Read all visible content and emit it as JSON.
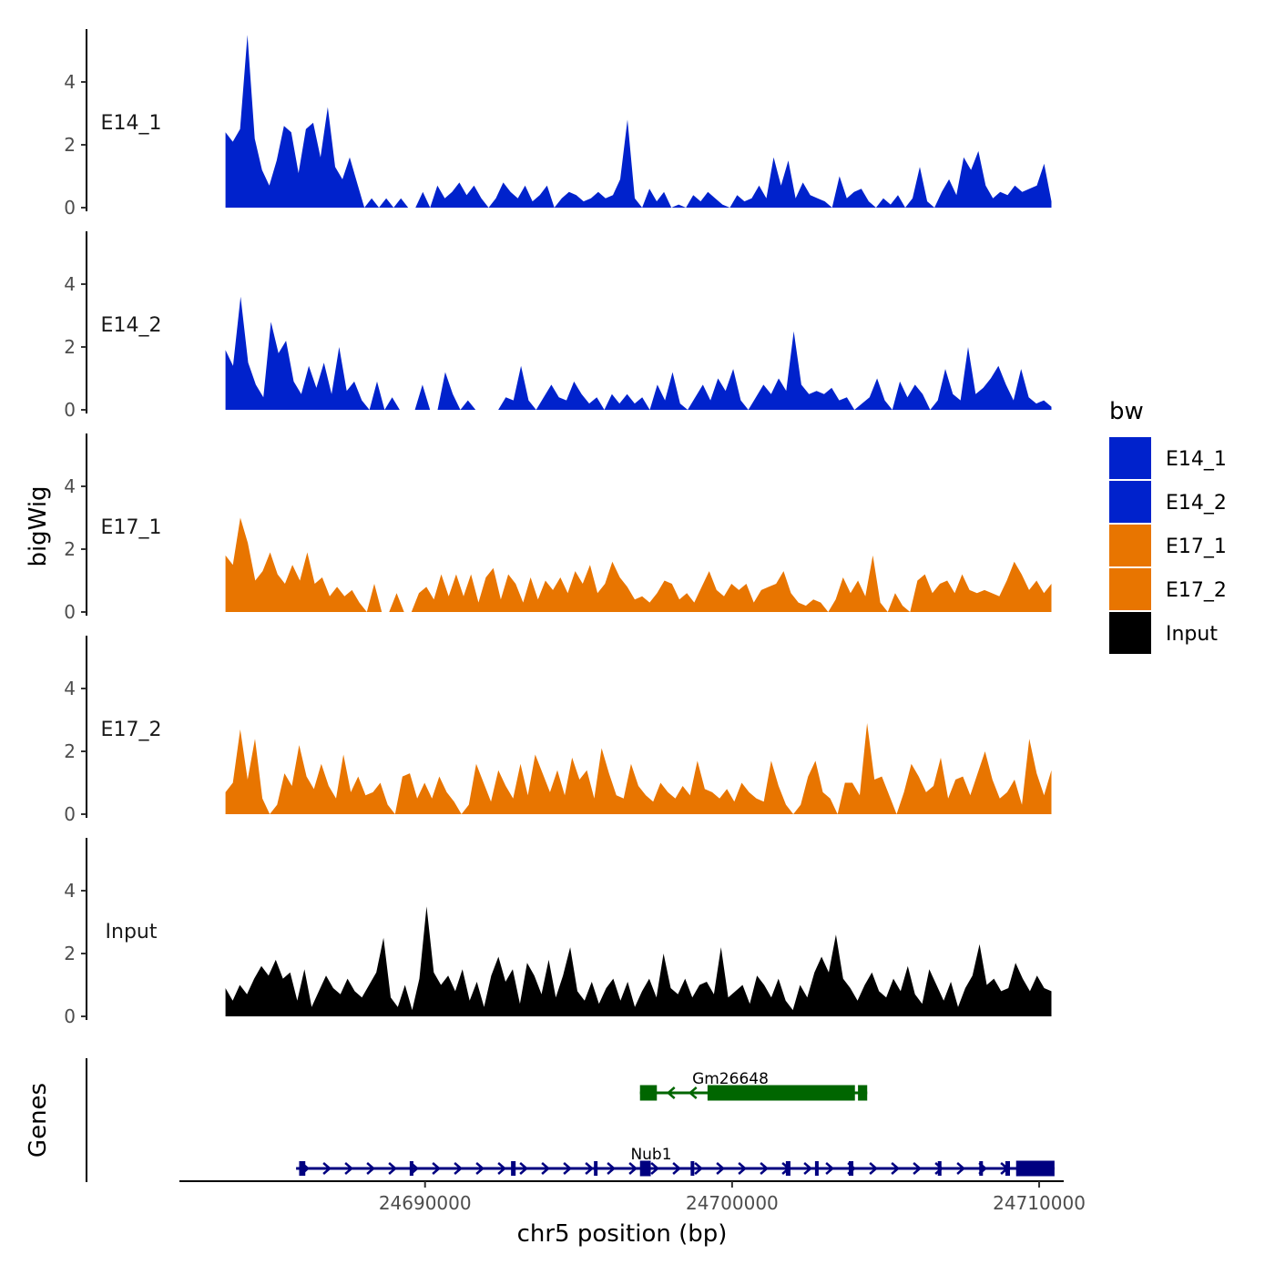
{
  "chart_data": {
    "type": "area",
    "y_axis_title": "bigWig",
    "genes_axis_title": "Genes",
    "x_axis_title": "chr5 position (bp)",
    "x_range": [
      24682000,
      24710800
    ],
    "x_ticks": [
      24690000,
      24700000,
      24710000
    ],
    "x_tick_labels": [
      "24690000",
      "24700000",
      "24710000"
    ],
    "y_range": [
      0,
      5.8
    ],
    "y_ticks": [
      0,
      2,
      4
    ],
    "y_tick_labels": [
      "0",
      "2",
      "4"
    ],
    "legend": {
      "title": "bw",
      "position": "right",
      "items": [
        {
          "label": "E14_1",
          "color": "#0022cc"
        },
        {
          "label": "E14_2",
          "color": "#0022cc"
        },
        {
          "label": "E17_1",
          "color": "#e87500"
        },
        {
          "label": "E17_2",
          "color": "#e87500"
        },
        {
          "label": "Input",
          "color": "#000000"
        }
      ]
    },
    "tracks": [
      {
        "name": "E14_1",
        "color": "#0022cc",
        "x_start": 24683500,
        "x_end": 24710400,
        "values": [
          2.4,
          2.1,
          2.5,
          5.5,
          2.2,
          1.2,
          0.7,
          1.5,
          2.6,
          2.4,
          1.1,
          2.5,
          2.7,
          1.6,
          3.2,
          1.3,
          0.9,
          1.6,
          0.8,
          0,
          0.3,
          0,
          0.3,
          0,
          0.3,
          0,
          0,
          0.5,
          0,
          0.7,
          0.3,
          0.5,
          0.8,
          0.4,
          0.7,
          0.3,
          0,
          0.3,
          0.8,
          0.5,
          0.3,
          0.7,
          0.2,
          0.4,
          0.7,
          0,
          0.3,
          0.5,
          0.4,
          0.2,
          0.3,
          0.5,
          0.3,
          0.4,
          0.9,
          2.8,
          0.3,
          0,
          0.6,
          0.2,
          0.5,
          0,
          0.1,
          0,
          0.4,
          0.2,
          0.5,
          0.3,
          0.1,
          0,
          0.4,
          0.2,
          0.3,
          0.7,
          0.3,
          1.6,
          0.7,
          1.5,
          0.3,
          0.8,
          0.4,
          0.3,
          0.2,
          0,
          1.0,
          0.3,
          0.5,
          0.6,
          0.2,
          0,
          0.3,
          0.1,
          0.4,
          0,
          0.3,
          1.3,
          0.2,
          0,
          0.5,
          0.9,
          0.4,
          1.6,
          1.2,
          1.8,
          0.7,
          0.3,
          0.5,
          0.4,
          0.7,
          0.5,
          0.6,
          0.7,
          1.4,
          0.2
        ]
      },
      {
        "name": "E14_2",
        "color": "#0022cc",
        "x_start": 24683500,
        "x_end": 24710400,
        "values": [
          1.9,
          1.4,
          3.6,
          1.5,
          0.8,
          0.4,
          2.8,
          1.8,
          2.2,
          0.9,
          0.5,
          1.4,
          0.7,
          1.5,
          0.5,
          2.0,
          0.6,
          0.9,
          0.3,
          0,
          0.9,
          0,
          0.4,
          0,
          0,
          0,
          0.8,
          0,
          0,
          1.2,
          0.5,
          0,
          0.3,
          0,
          0,
          0,
          0,
          0.4,
          0.3,
          1.4,
          0.3,
          0,
          0.4,
          0.8,
          0.4,
          0.3,
          0.9,
          0.5,
          0.2,
          0.4,
          0,
          0.5,
          0.2,
          0.5,
          0.2,
          0.4,
          0,
          0.8,
          0.3,
          1.2,
          0.2,
          0,
          0.4,
          0.8,
          0.3,
          1.0,
          0.6,
          1.3,
          0.3,
          0,
          0.4,
          0.8,
          0.5,
          1.0,
          0.6,
          2.5,
          0.8,
          0.5,
          0.6,
          0.5,
          0.7,
          0.3,
          0.4,
          0,
          0.2,
          0.4,
          1.0,
          0.3,
          0,
          0.9,
          0.4,
          0.8,
          0.5,
          0,
          0.3,
          1.3,
          0.5,
          0.3,
          2.0,
          0.5,
          0.7,
          1.0,
          1.4,
          0.8,
          0.3,
          1.3,
          0.4,
          0.2,
          0.3,
          0.1
        ]
      },
      {
        "name": "E17_1",
        "color": "#e87500",
        "x_start": 24683500,
        "x_end": 24710400,
        "values": [
          1.8,
          1.5,
          3.0,
          2.2,
          1.0,
          1.3,
          1.9,
          1.2,
          0.9,
          1.5,
          1.0,
          1.9,
          0.9,
          1.1,
          0.5,
          0.8,
          0.5,
          0.7,
          0.3,
          0,
          0.9,
          0,
          0,
          0.6,
          0,
          0,
          0.6,
          0.8,
          0.4,
          1.2,
          0.5,
          1.2,
          0.5,
          1.2,
          0.3,
          1.1,
          1.4,
          0.4,
          1.2,
          0.9,
          0.3,
          1.1,
          0.4,
          1.0,
          0.7,
          1.1,
          0.6,
          1.3,
          0.9,
          1.5,
          0.6,
          0.9,
          1.6,
          1.1,
          0.8,
          0.4,
          0.5,
          0.3,
          0.6,
          1.0,
          0.9,
          0.4,
          0.6,
          0.3,
          0.8,
          1.3,
          0.7,
          0.5,
          0.9,
          0.7,
          0.9,
          0.3,
          0.7,
          0.8,
          0.9,
          1.3,
          0.6,
          0.3,
          0.2,
          0.4,
          0.3,
          0,
          0.4,
          1.1,
          0.6,
          1.0,
          0.5,
          1.8,
          0.3,
          0,
          0.6,
          0.2,
          0,
          1.0,
          1.2,
          0.6,
          0.9,
          1.0,
          0.6,
          1.2,
          0.7,
          0.6,
          0.7,
          0.6,
          0.5,
          1.0,
          1.6,
          1.2,
          0.7,
          1.0,
          0.6,
          0.9
        ]
      },
      {
        "name": "E17_2",
        "color": "#e87500",
        "x_start": 24683500,
        "x_end": 24710400,
        "values": [
          0.7,
          1.0,
          2.7,
          1.1,
          2.4,
          0.5,
          0,
          0.3,
          1.3,
          0.9,
          2.2,
          1.2,
          0.8,
          1.6,
          0.9,
          0.5,
          1.9,
          0.7,
          1.2,
          0.6,
          0.7,
          1.0,
          0.3,
          0,
          1.2,
          1.3,
          0.5,
          1.0,
          0.5,
          1.2,
          0.7,
          0.4,
          0,
          0.3,
          1.6,
          1.0,
          0.4,
          1.4,
          0.9,
          0.5,
          1.6,
          0.6,
          1.9,
          1.3,
          0.7,
          1.4,
          0.6,
          1.8,
          1.1,
          1.4,
          0.5,
          2.1,
          1.3,
          0.6,
          0.5,
          1.6,
          0.9,
          0.6,
          0.4,
          1.0,
          0.7,
          0.5,
          0.9,
          0.6,
          1.7,
          0.8,
          0.7,
          0.5,
          0.8,
          0.4,
          1.0,
          0.7,
          0.5,
          0.4,
          1.7,
          0.9,
          0.3,
          0,
          0.3,
          1.2,
          1.7,
          0.7,
          0.5,
          0,
          1.0,
          1.0,
          0.6,
          2.9,
          1.1,
          1.2,
          0.6,
          0,
          0.7,
          1.6,
          1.2,
          0.7,
          0.9,
          1.8,
          0.5,
          1.1,
          1.2,
          0.6,
          1.3,
          2.0,
          1.1,
          0.5,
          0.7,
          1.1,
          0.3,
          2.4,
          1.3,
          0.6,
          1.4
        ]
      },
      {
        "name": "Input",
        "color": "#000000",
        "x_start": 24683500,
        "x_end": 24710400,
        "values": [
          0.9,
          0.5,
          1.0,
          0.7,
          1.2,
          1.6,
          1.3,
          1.8,
          1.2,
          1.4,
          0.5,
          1.5,
          0.3,
          0.8,
          1.3,
          0.9,
          0.7,
          1.2,
          0.8,
          0.6,
          1.0,
          1.4,
          2.5,
          0.6,
          0.3,
          1.0,
          0.2,
          1.2,
          3.5,
          1.4,
          1.0,
          1.3,
          0.8,
          1.5,
          0.5,
          1.1,
          0.3,
          1.3,
          1.9,
          1.1,
          1.5,
          0.4,
          1.7,
          1.3,
          0.7,
          1.8,
          0.6,
          1.3,
          2.2,
          0.8,
          0.5,
          1.1,
          0.4,
          0.9,
          1.2,
          0.5,
          1.1,
          0.3,
          0.8,
          1.2,
          0.6,
          2.0,
          0.9,
          0.7,
          1.2,
          0.6,
          1.0,
          1.1,
          0.7,
          2.2,
          0.6,
          0.8,
          1.0,
          0.4,
          1.3,
          1.0,
          0.6,
          1.2,
          0.5,
          0.2,
          1.0,
          0.6,
          1.4,
          1.9,
          1.4,
          2.6,
          1.2,
          0.9,
          0.5,
          1.0,
          1.4,
          0.8,
          0.6,
          1.2,
          0.8,
          1.6,
          0.7,
          0.4,
          1.5,
          1.0,
          0.5,
          1.1,
          0.3,
          0.9,
          1.3,
          2.3,
          1.0,
          1.2,
          0.8,
          0.9,
          1.7,
          1.2,
          0.8,
          1.3,
          0.9,
          0.8
        ]
      }
    ],
    "genes": [
      {
        "name": "Gm26648",
        "strand": "-",
        "color": "#006600",
        "row": 0,
        "start": 24697000,
        "end": 24704400,
        "exons": [
          [
            24697000,
            24697550
          ],
          [
            24699200,
            24704000
          ],
          [
            24704100,
            24704400
          ]
        ],
        "thick_exons": [
          1
        ]
      },
      {
        "name": "Nub1",
        "strand": "+",
        "color": "#000080",
        "row": 1,
        "start": 24685800,
        "end": 24710500,
        "exons": [
          [
            24685900,
            24686100
          ],
          [
            24689500,
            24689620
          ],
          [
            24692800,
            24692950
          ],
          [
            24695500,
            24695560
          ],
          [
            24697000,
            24697350
          ],
          [
            24698650,
            24698750
          ],
          [
            24701750,
            24701900
          ],
          [
            24702700,
            24702800
          ],
          [
            24703800,
            24703950
          ],
          [
            24706700,
            24706800
          ],
          [
            24708050,
            24708120
          ],
          [
            24708900,
            24709050
          ],
          [
            24709250,
            24710500
          ]
        ],
        "thick_exons": [
          12
        ]
      }
    ]
  }
}
